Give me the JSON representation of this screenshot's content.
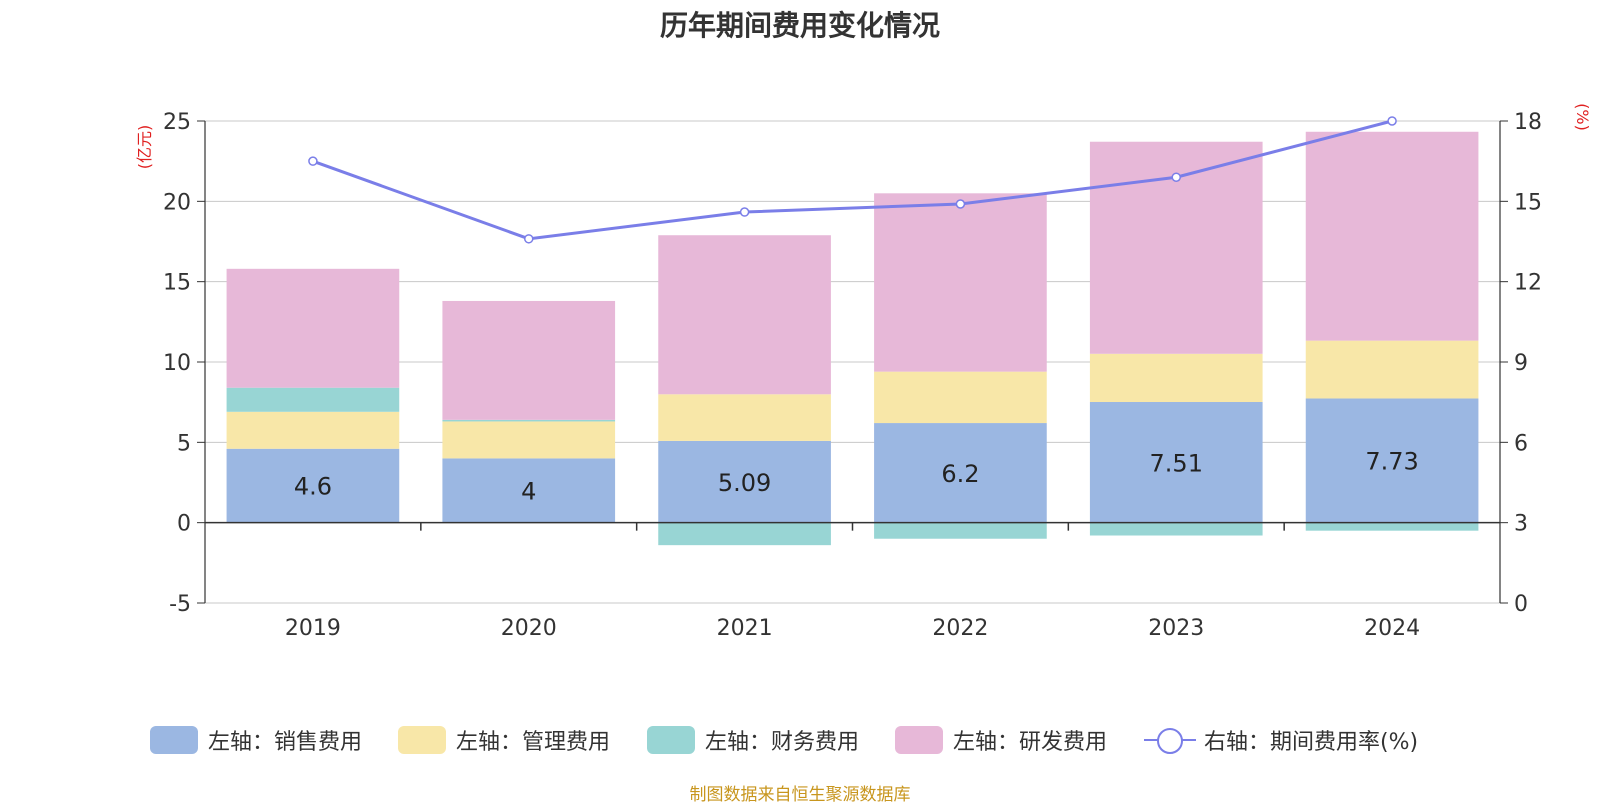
{
  "chart_data": {
    "type": "bar",
    "title": "历年期间费用变化情况",
    "categories": [
      "2019",
      "2020",
      "2021",
      "2022",
      "2023",
      "2024"
    ],
    "stacked": true,
    "series": [
      {
        "name": "左轴：销售费用",
        "axis": "left",
        "type": "bar",
        "color": "#9bb7e2",
        "values": [
          4.6,
          4.0,
          5.09,
          6.2,
          7.51,
          7.73
        ]
      },
      {
        "name": "左轴：管理费用",
        "axis": "left",
        "type": "bar",
        "color": "#f8e7a8",
        "values": [
          2.3,
          2.3,
          2.9,
          3.2,
          3.0,
          3.6
        ]
      },
      {
        "name": "左轴：财务费用",
        "axis": "left",
        "type": "bar",
        "color": "#98d5d4",
        "values": [
          1.5,
          0.1,
          -1.4,
          -1.0,
          -0.8,
          -0.5
        ]
      },
      {
        "name": "左轴：研发费用",
        "axis": "left",
        "type": "bar",
        "color": "#e7b8d8",
        "values": [
          7.4,
          7.4,
          9.9,
          11.1,
          13.2,
          13.0
        ]
      },
      {
        "name": "右轴：期间费用率(%)",
        "axis": "right",
        "type": "line",
        "color": "#7a7ee8",
        "values": [
          16.5,
          13.6,
          14.6,
          14.9,
          15.9,
          18.0
        ]
      }
    ],
    "data_labels": [
      "4.6",
      "4",
      "5.09",
      "6.2",
      "7.51",
      "7.73"
    ],
    "left_axis": {
      "label": "(亿元)",
      "ylim": [
        -5,
        25
      ],
      "ticks": [
        "25",
        "20",
        "15",
        "10",
        "5",
        "0",
        "-5"
      ]
    },
    "right_axis": {
      "label": "(%)",
      "ylim": [
        0,
        18
      ],
      "ticks": [
        "18",
        "15",
        "12",
        "9",
        "6",
        "3",
        "0"
      ]
    },
    "grid": true,
    "legend_position": "bottom"
  },
  "source_note": "制图数据来自恒生聚源数据库"
}
